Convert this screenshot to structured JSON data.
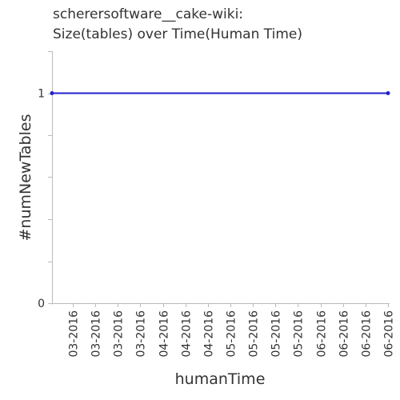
{
  "chart_data": {
    "type": "line",
    "title_lines": [
      "scherersoftware__cake-wiki:",
      "Size(tables) over Time(Human Time)"
    ],
    "xlabel": "humanTime",
    "ylabel": "#numNewTables",
    "ylim": [
      0,
      1.2
    ],
    "y_ticks": [
      "0",
      "1"
    ],
    "x_tick_labels": [
      "03-2016",
      "03-2016",
      "03-2016",
      "03-2016",
      "04-2016",
      "04-2016",
      "04-2016",
      "05-2016",
      "05-2016",
      "05-2016",
      "05-2016",
      "06-2016",
      "06-2016",
      "06-2016",
      "06-2016"
    ],
    "series": [
      {
        "values": [
          1,
          1
        ],
        "x": [
          0,
          1
        ]
      }
    ],
    "grid": false,
    "colors": {
      "line": "#2222cc",
      "axis": "#bbbbbb",
      "text": "#333333"
    }
  }
}
